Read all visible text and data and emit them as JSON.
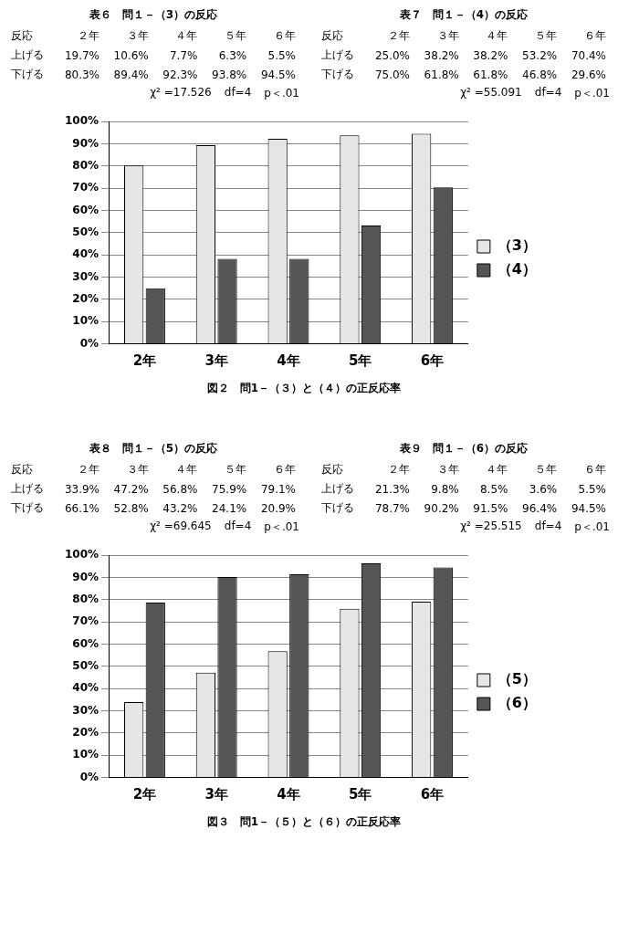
{
  "chart_data": [
    {
      "type": "heatmap",
      "title": "表６　問１－（3）の反応",
      "ylabel": "反応",
      "categories": [
        "２年",
        "３年",
        "４年",
        "５年",
        "６年"
      ],
      "y_categories": [
        "上げる",
        "下げる"
      ],
      "cells": [
        [
          19.7,
          10.6,
          7.7,
          6.3,
          5.5
        ],
        [
          80.3,
          89.4,
          92.3,
          93.8,
          94.5
        ]
      ],
      "cell_labels": [
        [
          "19.7%",
          "10.6%",
          "7.7%",
          "6.3%",
          "5.5%"
        ],
        [
          "80.3%",
          "89.4%",
          "92.3%",
          "93.8%",
          "94.5%"
        ]
      ],
      "annotations": [
        "χ² =17.526",
        "df=4",
        "p＜.01"
      ]
    },
    {
      "type": "heatmap",
      "title": "表７　問１－（4）の反応",
      "ylabel": "反応",
      "categories": [
        "２年",
        "３年",
        "４年",
        "５年",
        "６年"
      ],
      "y_categories": [
        "上げる",
        "下げる"
      ],
      "cells": [
        [
          25.0,
          38.2,
          38.2,
          53.2,
          70.4
        ],
        [
          75.0,
          61.8,
          61.8,
          46.8,
          29.6
        ]
      ],
      "cell_labels": [
        [
          "25.0%",
          "38.2%",
          "38.2%",
          "53.2%",
          "70.4%"
        ],
        [
          "75.0%",
          "61.8%",
          "61.8%",
          "46.8%",
          "29.6%"
        ]
      ],
      "annotations": [
        "χ² =55.091",
        "df=4",
        "p＜.01"
      ]
    },
    {
      "type": "bar",
      "title": "図２　問1－（３）と（４）の正反応率",
      "categories": [
        "2年",
        "3年",
        "4年",
        "5年",
        "6年"
      ],
      "series": [
        {
          "name": "（3）",
          "color": "#e6e6e6",
          "values": [
            80.3,
            89.4,
            92.3,
            93.8,
            94.5
          ]
        },
        {
          "name": "（4）",
          "color": "#555555",
          "values": [
            25.0,
            38.2,
            38.2,
            53.2,
            70.4
          ]
        }
      ],
      "ylim": [
        0,
        100
      ],
      "yticks": [
        {
          "value": 0,
          "label": "0%"
        },
        {
          "value": 10,
          "label": "10%"
        },
        {
          "value": 20,
          "label": "20%"
        },
        {
          "value": 30,
          "label": "30%"
        },
        {
          "value": 40,
          "label": "40%"
        },
        {
          "value": 50,
          "label": "50%"
        },
        {
          "value": 60,
          "label": "60%"
        },
        {
          "value": 70,
          "label": "70%"
        },
        {
          "value": 80,
          "label": "80%"
        },
        {
          "value": 90,
          "label": "90%"
        },
        {
          "value": 100,
          "label": "100%"
        }
      ],
      "grid": "y",
      "legend": "right"
    },
    {
      "type": "heatmap",
      "title": "表８　問１－（5）の反応",
      "ylabel": "反応",
      "categories": [
        "２年",
        "３年",
        "４年",
        "５年",
        "６年"
      ],
      "y_categories": [
        "上げる",
        "下げる"
      ],
      "cells": [
        [
          33.9,
          47.2,
          56.8,
          75.9,
          79.1
        ],
        [
          66.1,
          52.8,
          43.2,
          24.1,
          20.9
        ]
      ],
      "cell_labels": [
        [
          "33.9%",
          "47.2%",
          "56.8%",
          "75.9%",
          "79.1%"
        ],
        [
          "66.1%",
          "52.8%",
          "43.2%",
          "24.1%",
          "20.9%"
        ]
      ],
      "annotations": [
        "χ² =69.645",
        "df=4",
        "p＜.01"
      ]
    },
    {
      "type": "heatmap",
      "title": "表９　問１－（6）の反応",
      "ylabel": "反応",
      "categories": [
        "２年",
        "３年",
        "４年",
        "５年",
        "６年"
      ],
      "y_categories": [
        "上げる",
        "下げる"
      ],
      "cells": [
        [
          21.3,
          9.8,
          8.5,
          3.6,
          5.5
        ],
        [
          78.7,
          90.2,
          91.5,
          96.4,
          94.5
        ]
      ],
      "cell_labels": [
        [
          "21.3%",
          "9.8%",
          "8.5%",
          "3.6%",
          "5.5%"
        ],
        [
          "78.7%",
          "90.2%",
          "91.5%",
          "96.4%",
          "94.5%"
        ]
      ],
      "annotations": [
        "χ² =25.515",
        "df=4",
        "p＜.01"
      ]
    },
    {
      "type": "bar",
      "title": "図３　問1－（５）と（６）の正反応率",
      "categories": [
        "2年",
        "3年",
        "4年",
        "5年",
        "6年"
      ],
      "series": [
        {
          "name": "（5）",
          "color": "#e6e6e6",
          "values": [
            33.9,
            47.2,
            56.8,
            75.9,
            79.1
          ]
        },
        {
          "name": "（6）",
          "color": "#555555",
          "values": [
            78.7,
            90.2,
            91.5,
            96.4,
            94.5
          ]
        }
      ],
      "ylim": [
        0,
        100
      ],
      "yticks": [
        {
          "value": 0,
          "label": "0%"
        },
        {
          "value": 10,
          "label": "10%"
        },
        {
          "value": 20,
          "label": "20%"
        },
        {
          "value": 30,
          "label": "30%"
        },
        {
          "value": 40,
          "label": "40%"
        },
        {
          "value": 50,
          "label": "50%"
        },
        {
          "value": 60,
          "label": "60%"
        },
        {
          "value": 70,
          "label": "70%"
        },
        {
          "value": 80,
          "label": "80%"
        },
        {
          "value": 90,
          "label": "90%"
        },
        {
          "value": 100,
          "label": "100%"
        }
      ],
      "grid": "y",
      "legend": "right"
    }
  ]
}
